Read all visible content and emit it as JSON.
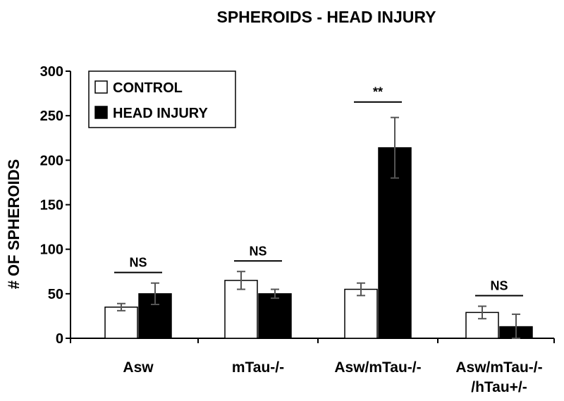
{
  "chart_data": {
    "type": "bar",
    "title": "SPHEROIDS - HEAD INJURY",
    "xlabel": "",
    "ylabel": "# OF SPHEROIDS",
    "ylim": [
      0,
      300
    ],
    "yticks": [
      0,
      50,
      100,
      150,
      200,
      250,
      300
    ],
    "categories": [
      [
        "Asw"
      ],
      [
        "mTau-/-"
      ],
      [
        "Asw/mTau-/-"
      ],
      [
        "Asw/mTau-/-",
        "/hTau+/-"
      ]
    ],
    "series": [
      {
        "name": "CONTROL",
        "color": "#ffffff",
        "values": [
          35,
          65,
          55,
          29
        ],
        "errors": [
          4,
          10,
          7,
          7
        ]
      },
      {
        "name": "HEAD INJURY",
        "color": "#000000",
        "values": [
          50,
          50,
          214,
          13
        ],
        "errors": [
          12,
          5,
          34,
          14
        ]
      }
    ],
    "significance": [
      "NS",
      "NS",
      "**",
      "NS"
    ],
    "legend_position": "top-left",
    "grid": false
  }
}
